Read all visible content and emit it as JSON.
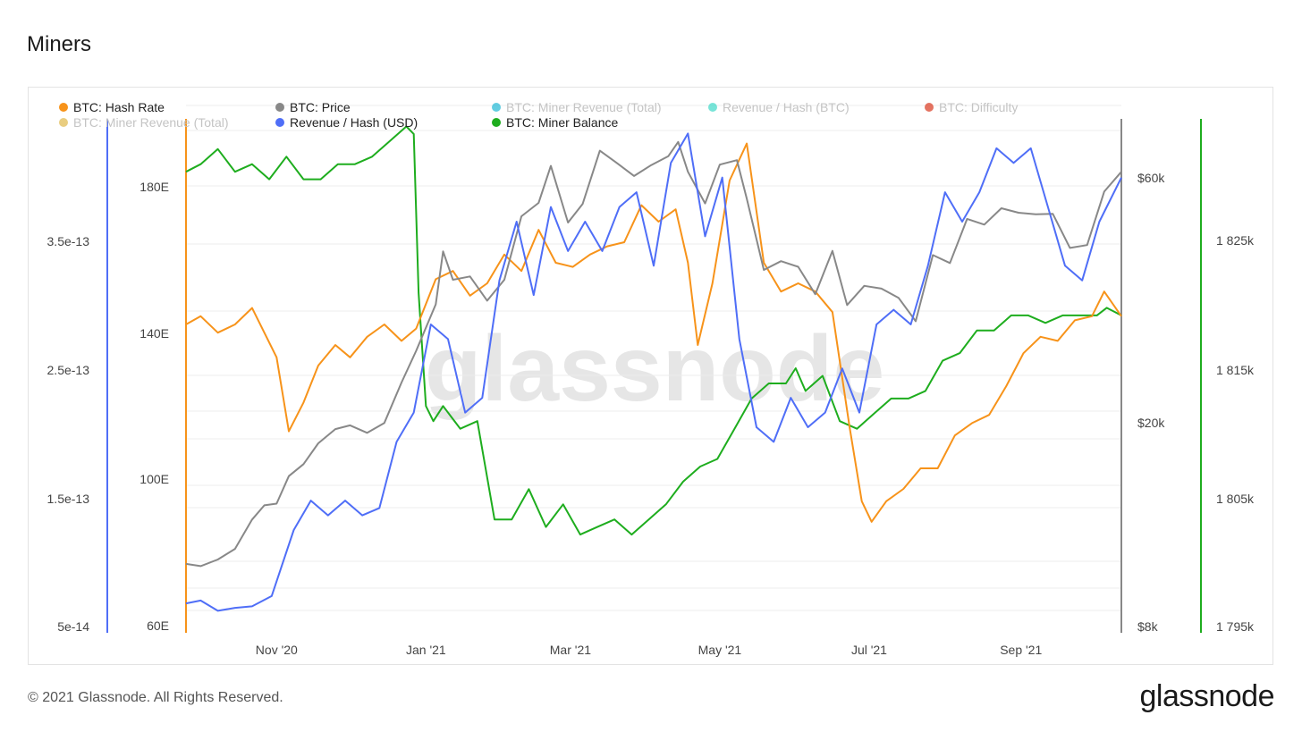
{
  "page": {
    "title": "Miners",
    "footer": "© 2021 Glassnode. All Rights Reserved.",
    "logo_text": "glassnode",
    "watermark": "glassnode"
  },
  "chart_data": {
    "type": "line",
    "x_ticks": [
      "Nov '20",
      "Jan '21",
      "Mar '21",
      "May '21",
      "Jul '21",
      "Sep '21"
    ],
    "x_tick_dates": [
      "2020-11-01",
      "2021-01-01",
      "2021-03-01",
      "2021-05-01",
      "2021-07-01",
      "2021-09-01"
    ],
    "x_range": [
      "2020-09-25",
      "2021-10-12"
    ],
    "legend": [
      {
        "name": "BTC: Hash Rate",
        "color": "#f7931a",
        "active": true
      },
      {
        "name": "BTC: Price",
        "color": "#888888",
        "active": true
      },
      {
        "name": "BTC: Miner Revenue (Total)",
        "color": "#1fb8d4",
        "active": false
      },
      {
        "name": "Revenue / Hash (BTC)",
        "color": "#3fd9c8",
        "active": false
      },
      {
        "name": "BTC: Difficulty",
        "color": "#d9381e",
        "active": false
      },
      {
        "name": "BTC: Miner Revenue (Total)",
        "color": "#e0b84a",
        "active": false
      },
      {
        "name": "Revenue / Hash (USD)",
        "color": "#4f6ef7",
        "active": true
      },
      {
        "name": "BTC: Miner Balance",
        "color": "#1ead1e",
        "active": true
      }
    ],
    "axes": {
      "revenue_hash_usd": {
        "labels": [
          "3.5e-13",
          "2.5e-13",
          "1.5e-13",
          "5e-14"
        ],
        "color": "#4f6ef7",
        "range": [
          5e-14,
          4e-13
        ]
      },
      "hash_rate": {
        "labels": [
          "180E",
          "140E",
          "100E",
          "60E"
        ],
        "color": "#f7931a",
        "range": [
          60,
          185
        ],
        "unit": "E"
      },
      "price": {
        "labels": [
          "$60k",
          "$20k",
          "$8k"
        ],
        "color": "#888888",
        "scale": "log",
        "range": [
          8000,
          70000
        ]
      },
      "miner_balance": {
        "labels": [
          "1 825k",
          "1 815k",
          "1 805k",
          "1 795k"
        ],
        "color": "#1ead1e",
        "range": [
          1795000,
          1829000
        ]
      }
    },
    "series": [
      {
        "name": "BTC: Hash Rate",
        "axis": "hash_rate",
        "color": "#f7931a",
        "dates": [
          "2020-09-25",
          "2020-10-01",
          "2020-10-08",
          "2020-10-15",
          "2020-10-22",
          "2020-10-27",
          "2020-11-01",
          "2020-11-06",
          "2020-11-12",
          "2020-11-18",
          "2020-11-25",
          "2020-12-01",
          "2020-12-08",
          "2020-12-15",
          "2020-12-22",
          "2020-12-28",
          "2021-01-05",
          "2021-01-12",
          "2021-01-19",
          "2021-01-26",
          "2021-02-02",
          "2021-02-09",
          "2021-02-16",
          "2021-02-23",
          "2021-03-02",
          "2021-03-09",
          "2021-03-16",
          "2021-03-23",
          "2021-03-30",
          "2021-04-06",
          "2021-04-13",
          "2021-04-18",
          "2021-04-22",
          "2021-04-28",
          "2021-05-05",
          "2021-05-12",
          "2021-05-19",
          "2021-05-26",
          "2021-06-02",
          "2021-06-09",
          "2021-06-16",
          "2021-06-23",
          "2021-06-28",
          "2021-07-02",
          "2021-07-08",
          "2021-07-15",
          "2021-07-22",
          "2021-07-29",
          "2021-08-05",
          "2021-08-12",
          "2021-08-19",
          "2021-08-26",
          "2021-09-02",
          "2021-09-09",
          "2021-09-16",
          "2021-09-23",
          "2021-09-30",
          "2021-10-05",
          "2021-10-12"
        ],
        "values": [
          135,
          137,
          133,
          135,
          139,
          133,
          127,
          109,
          116,
          125,
          130,
          127,
          132,
          135,
          131,
          134,
          146,
          148,
          142,
          145,
          152,
          148,
          158,
          150,
          149,
          152,
          154,
          155,
          164,
          160,
          163,
          150,
          130,
          145,
          170,
          179,
          150,
          143,
          145,
          143,
          138,
          110,
          92,
          87,
          92,
          95,
          100,
          100,
          108,
          111,
          113,
          120,
          128,
          132,
          131,
          136,
          137,
          143,
          137
        ]
      },
      {
        "name": "BTC: Price",
        "axis": "price",
        "color": "#888888",
        "dates": [
          "2020-09-25",
          "2020-10-01",
          "2020-10-08",
          "2020-10-15",
          "2020-10-22",
          "2020-10-27",
          "2020-11-01",
          "2020-11-06",
          "2020-11-12",
          "2020-11-18",
          "2020-11-25",
          "2020-12-01",
          "2020-12-08",
          "2020-12-15",
          "2020-12-22",
          "2020-12-28",
          "2021-01-05",
          "2021-01-08",
          "2021-01-12",
          "2021-01-19",
          "2021-01-26",
          "2021-02-02",
          "2021-02-09",
          "2021-02-16",
          "2021-02-21",
          "2021-02-28",
          "2021-03-06",
          "2021-03-13",
          "2021-03-20",
          "2021-03-27",
          "2021-04-03",
          "2021-04-10",
          "2021-04-14",
          "2021-04-18",
          "2021-04-25",
          "2021-05-01",
          "2021-05-08",
          "2021-05-12",
          "2021-05-19",
          "2021-05-26",
          "2021-06-02",
          "2021-06-09",
          "2021-06-16",
          "2021-06-22",
          "2021-06-29",
          "2021-07-06",
          "2021-07-13",
          "2021-07-20",
          "2021-07-27",
          "2021-08-03",
          "2021-08-10",
          "2021-08-17",
          "2021-08-24",
          "2021-08-31",
          "2021-09-07",
          "2021-09-14",
          "2021-09-21",
          "2021-09-28",
          "2021-10-05",
          "2021-10-12"
        ],
        "values": [
          10700,
          10600,
          10900,
          11400,
          12900,
          13700,
          13800,
          15500,
          16300,
          17800,
          18900,
          19200,
          18600,
          19400,
          23000,
          26300,
          32000,
          40000,
          35500,
          36000,
          32500,
          35500,
          46400,
          49100,
          57400,
          45200,
          48900,
          61200,
          58100,
          55000,
          57600,
          59800,
          63500,
          56000,
          49000,
          57700,
          58800,
          50000,
          37000,
          38400,
          37500,
          33400,
          40100,
          31900,
          34600,
          34200,
          32900,
          29800,
          39400,
          38100,
          45900,
          44800,
          48000,
          47100,
          46800,
          46900,
          40600,
          41100,
          51500,
          56000
        ]
      },
      {
        "name": "Revenue / Hash (USD)",
        "axis": "revenue_hash_usd",
        "color": "#4f6ef7",
        "dates": [
          "2020-09-25",
          "2020-10-01",
          "2020-10-08",
          "2020-10-15",
          "2020-10-22",
          "2020-10-30",
          "2020-11-08",
          "2020-11-15",
          "2020-11-22",
          "2020-11-29",
          "2020-12-06",
          "2020-12-13",
          "2020-12-20",
          "2020-12-27",
          "2021-01-03",
          "2021-01-10",
          "2021-01-17",
          "2021-01-24",
          "2021-01-31",
          "2021-02-07",
          "2021-02-14",
          "2021-02-21",
          "2021-02-28",
          "2021-03-07",
          "2021-03-14",
          "2021-03-21",
          "2021-03-28",
          "2021-04-04",
          "2021-04-11",
          "2021-04-18",
          "2021-04-25",
          "2021-05-02",
          "2021-05-09",
          "2021-05-16",
          "2021-05-23",
          "2021-05-30",
          "2021-06-06",
          "2021-06-13",
          "2021-06-20",
          "2021-06-27",
          "2021-07-04",
          "2021-07-11",
          "2021-07-18",
          "2021-07-25",
          "2021-08-01",
          "2021-08-08",
          "2021-08-15",
          "2021-08-22",
          "2021-08-29",
          "2021-09-05",
          "2021-09-12",
          "2021-09-19",
          "2021-09-26",
          "2021-10-03",
          "2021-10-12"
        ],
        "values": [
          7e-14,
          7.2e-14,
          6.5e-14,
          6.7e-14,
          6.8e-14,
          7.5e-14,
          1.2e-13,
          1.4e-13,
          1.3e-13,
          1.4e-13,
          1.3e-13,
          1.35e-13,
          1.8e-13,
          2e-13,
          2.6e-13,
          2.5e-13,
          2e-13,
          2.1e-13,
          2.9e-13,
          3.3e-13,
          2.8e-13,
          3.4e-13,
          3.1e-13,
          3.3e-13,
          3.1e-13,
          3.4e-13,
          3.5e-13,
          3e-13,
          3.7e-13,
          3.9e-13,
          3.2e-13,
          3.6e-13,
          2.5e-13,
          1.9e-13,
          1.8e-13,
          2.1e-13,
          1.9e-13,
          2e-13,
          2.3e-13,
          2e-13,
          2.6e-13,
          2.7e-13,
          2.6e-13,
          3e-13,
          3.5e-13,
          3.3e-13,
          3.5e-13,
          3.8e-13,
          3.7e-13,
          3.8e-13,
          3.4e-13,
          3e-13,
          2.9e-13,
          3.3e-13,
          3.6e-13
        ]
      },
      {
        "name": "BTC: Miner Balance",
        "axis": "miner_balance",
        "color": "#1ead1e",
        "dates": [
          "2020-09-25",
          "2020-10-01",
          "2020-10-08",
          "2020-10-15",
          "2020-10-22",
          "2020-10-29",
          "2020-11-05",
          "2020-11-12",
          "2020-11-19",
          "2020-11-26",
          "2020-12-03",
          "2020-12-10",
          "2020-12-17",
          "2020-12-24",
          "2020-12-27",
          "2020-12-29",
          "2021-01-01",
          "2021-01-04",
          "2021-01-08",
          "2021-01-15",
          "2021-01-22",
          "2021-01-29",
          "2021-02-05",
          "2021-02-12",
          "2021-02-19",
          "2021-02-26",
          "2021-03-05",
          "2021-03-12",
          "2021-03-19",
          "2021-03-26",
          "2021-04-02",
          "2021-04-09",
          "2021-04-16",
          "2021-04-23",
          "2021-04-30",
          "2021-05-07",
          "2021-05-14",
          "2021-05-21",
          "2021-05-28",
          "2021-06-01",
          "2021-06-05",
          "2021-06-12",
          "2021-06-19",
          "2021-06-26",
          "2021-07-03",
          "2021-07-10",
          "2021-07-17",
          "2021-07-24",
          "2021-07-31",
          "2021-08-07",
          "2021-08-14",
          "2021-08-21",
          "2021-08-28",
          "2021-09-04",
          "2021-09-11",
          "2021-09-18",
          "2021-09-25",
          "2021-10-02",
          "2021-10-06",
          "2021-10-12"
        ],
        "values": [
          1825500,
          1826000,
          1827000,
          1825500,
          1826000,
          1825000,
          1826500,
          1825000,
          1825000,
          1826000,
          1826000,
          1826500,
          1827500,
          1828500,
          1828000,
          1817500,
          1810000,
          1809000,
          1810000,
          1808500,
          1809000,
          1802500,
          1802500,
          1804500,
          1802000,
          1803500,
          1801500,
          1802000,
          1802500,
          1801500,
          1802500,
          1803500,
          1805000,
          1806000,
          1806500,
          1808500,
          1810500,
          1811500,
          1811500,
          1812500,
          1811000,
          1812000,
          1809000,
          1808500,
          1809500,
          1810500,
          1810500,
          1811000,
          1813000,
          1813500,
          1815000,
          1815000,
          1816000,
          1816000,
          1815500,
          1816000,
          1816000,
          1816000,
          1816500,
          1816000
        ]
      }
    ]
  }
}
